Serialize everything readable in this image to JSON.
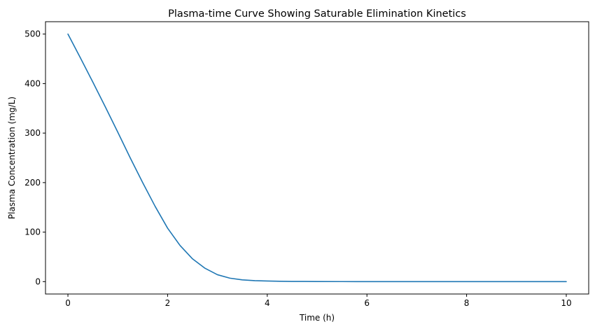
{
  "chart_data": {
    "type": "line",
    "title": "Plasma-time Curve Showing Saturable Elimination Kinetics",
    "xlabel": "Time (h)",
    "ylabel": "Plasma Concentration (mg/L)",
    "xlim": [
      -0.45,
      10.45
    ],
    "ylim": [
      -25,
      525
    ],
    "xticks": [
      0,
      2,
      4,
      6,
      8,
      10
    ],
    "yticks": [
      0,
      100,
      200,
      300,
      400,
      500
    ],
    "grid": false,
    "series": [
      {
        "color": "#1f77b4",
        "x": [
          0,
          0.25,
          0.5,
          0.75,
          1.0,
          1.25,
          1.5,
          1.75,
          2.0,
          2.25,
          2.5,
          2.75,
          3.0,
          3.25,
          3.5,
          3.75,
          4.0,
          4.25,
          4.5,
          4.75,
          5.0,
          5.5,
          6.0,
          7.0,
          8.0,
          9.0,
          10.0
        ],
        "y": [
          500,
          452,
          403,
          353,
          302,
          250,
          200,
          152,
          108,
          73,
          46,
          27,
          14,
          7,
          3.5,
          2,
          1.2,
          0.7,
          0.4,
          0.3,
          0.2,
          0.1,
          0.05,
          0.02,
          0.01,
          0.005,
          0
        ]
      }
    ]
  }
}
